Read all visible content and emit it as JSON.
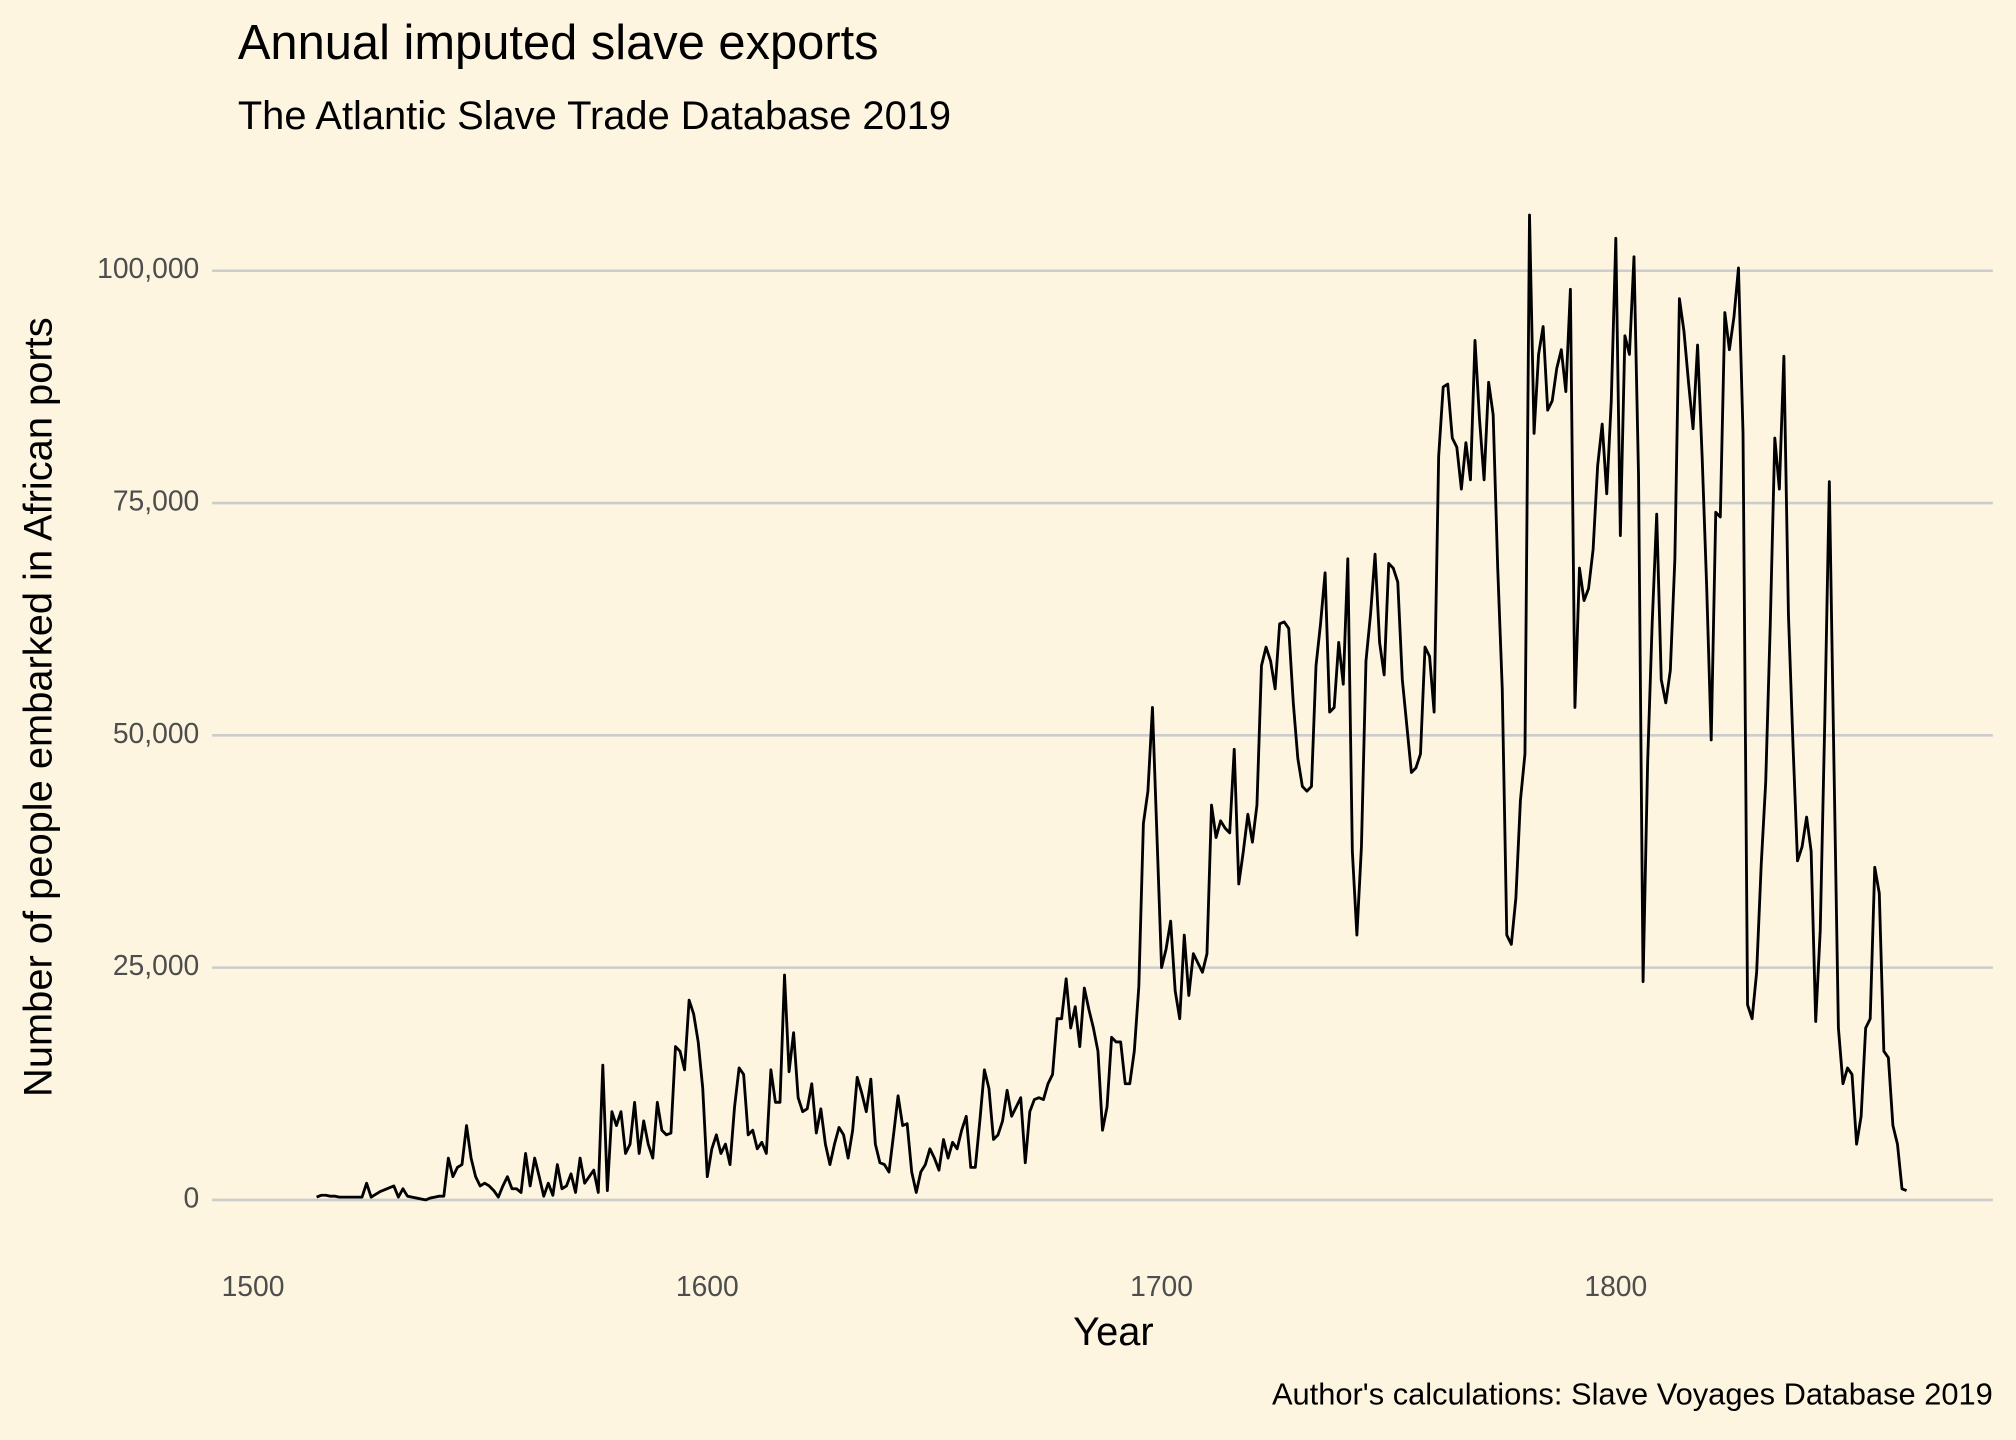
{
  "chart_data": {
    "type": "line",
    "title": "Annual imputed slave exports",
    "subtitle": "The Atlantic Slave Trade Database 2019",
    "x_label": "Year",
    "y_label": "Number of people embarked in African ports",
    "caption": "Author's calculations: Slave Voyages Database 2019",
    "xlim": [
      1491,
      1883
    ],
    "ylim": [
      -3700,
      107000
    ],
    "xticks": [
      1500,
      1600,
      1700,
      1800
    ],
    "yticks": [
      0,
      {
        "value": 25000,
        "label": "25,000"
      },
      {
        "value": 50000,
        "label": "50,000"
      },
      {
        "value": 75000,
        "label": "75,000"
      },
      {
        "value": 100000,
        "label": "100,000"
      }
    ],
    "grid": true,
    "x": [
      1514,
      1515,
      1516,
      1517,
      1518,
      1519,
      1520,
      1521,
      1522,
      1523,
      1524,
      1525,
      1526,
      1527,
      1528,
      1529,
      1530,
      1531,
      1532,
      1533,
      1534,
      1535,
      1536,
      1537,
      1538,
      1539,
      1540,
      1541,
      1542,
      1543,
      1544,
      1545,
      1546,
      1547,
      1548,
      1549,
      1550,
      1551,
      1552,
      1553,
      1554,
      1555,
      1556,
      1557,
      1558,
      1559,
      1560,
      1561,
      1562,
      1563,
      1564,
      1565,
      1566,
      1567,
      1568,
      1569,
      1570,
      1571,
      1572,
      1573,
      1574,
      1575,
      1576,
      1577,
      1578,
      1579,
      1580,
      1581,
      1582,
      1583,
      1584,
      1585,
      1586,
      1587,
      1588,
      1589,
      1590,
      1591,
      1592,
      1593,
      1594,
      1595,
      1596,
      1597,
      1598,
      1599,
      1600,
      1601,
      1602,
      1603,
      1604,
      1605,
      1606,
      1607,
      1608,
      1609,
      1610,
      1611,
      1612,
      1613,
      1614,
      1615,
      1616,
      1617,
      1618,
      1619,
      1620,
      1621,
      1622,
      1623,
      1624,
      1625,
      1626,
      1627,
      1628,
      1629,
      1630,
      1631,
      1632,
      1633,
      1634,
      1635,
      1636,
      1637,
      1638,
      1639,
      1640,
      1641,
      1642,
      1643,
      1644,
      1645,
      1646,
      1647,
      1648,
      1649,
      1650,
      1651,
      1652,
      1653,
      1654,
      1655,
      1656,
      1657,
      1658,
      1659,
      1660,
      1661,
      1662,
      1663,
      1664,
      1665,
      1666,
      1667,
      1668,
      1669,
      1670,
      1671,
      1672,
      1673,
      1674,
      1675,
      1676,
      1677,
      1678,
      1679,
      1680,
      1681,
      1682,
      1683,
      1684,
      1685,
      1686,
      1687,
      1688,
      1689,
      1690,
      1691,
      1692,
      1693,
      1694,
      1695,
      1696,
      1697,
      1698,
      1699,
      1700,
      1701,
      1702,
      1703,
      1704,
      1705,
      1706,
      1707,
      1708,
      1709,
      1710,
      1711,
      1712,
      1713,
      1714,
      1715,
      1716,
      1717,
      1718,
      1719,
      1720,
      1721,
      1722,
      1723,
      1724,
      1725,
      1726,
      1727,
      1728,
      1729,
      1730,
      1731,
      1732,
      1733,
      1734,
      1735,
      1736,
      1737,
      1738,
      1739,
      1740,
      1741,
      1742,
      1743,
      1744,
      1745,
      1746,
      1747,
      1748,
      1749,
      1750,
      1751,
      1752,
      1753,
      1754,
      1755,
      1756,
      1757,
      1758,
      1759,
      1760,
      1761,
      1762,
      1763,
      1764,
      1765,
      1766,
      1767,
      1768,
      1769,
      1770,
      1771,
      1772,
      1773,
      1774,
      1775,
      1776,
      1777,
      1778,
      1779,
      1780,
      1781,
      1782,
      1783,
      1784,
      1785,
      1786,
      1787,
      1788,
      1789,
      1790,
      1791,
      1792,
      1793,
      1794,
      1795,
      1796,
      1797,
      1798,
      1799,
      1800,
      1801,
      1802,
      1803,
      1804,
      1805,
      1806,
      1807,
      1808,
      1809,
      1810,
      1811,
      1812,
      1813,
      1814,
      1815,
      1816,
      1817,
      1818,
      1819,
      1820,
      1821,
      1822,
      1823,
      1824,
      1825,
      1826,
      1827,
      1828,
      1829,
      1830,
      1831,
      1832,
      1833,
      1834,
      1835,
      1836,
      1837,
      1838,
      1839,
      1840,
      1841,
      1842,
      1843,
      1844,
      1845,
      1846,
      1847,
      1848,
      1849,
      1850,
      1851,
      1852,
      1853,
      1854,
      1855,
      1856,
      1857,
      1858,
      1859,
      1860,
      1861,
      1862,
      1863,
      1864
    ],
    "series": [
      {
        "color": "#000000",
        "values": [
          300,
          500,
          500,
          400,
          400,
          300,
          300,
          300,
          300,
          300,
          300,
          1800,
          300,
          600,
          900,
          1100,
          1300,
          1500,
          300,
          1200,
          400,
          300,
          200,
          100,
          0,
          200,
          300,
          400,
          400,
          4500,
          2500,
          3500,
          3800,
          8000,
          4500,
          2500,
          1500,
          1800,
          1500,
          1000,
          300,
          1500,
          2500,
          1200,
          1200,
          800,
          5000,
          1500,
          4500,
          2500,
          400,
          1800,
          500,
          3800,
          1200,
          1500,
          2800,
          800,
          4500,
          1800,
          2500,
          3200,
          800,
          14500,
          1000,
          9500,
          8000,
          9500,
          5000,
          6000,
          10500,
          5000,
          8500,
          6000,
          4500,
          10500,
          7500,
          7000,
          7200,
          16500,
          16000,
          14000,
          21500,
          20000,
          17000,
          12000,
          2500,
          5500,
          7000,
          5000,
          6000,
          3800,
          10000,
          14200,
          13500,
          7000,
          7500,
          5500,
          6200,
          5000,
          14000,
          10500,
          10500,
          24200,
          13800,
          18000,
          11000,
          9500,
          9800,
          12500,
          7200,
          9800,
          6000,
          3800,
          6000,
          7800,
          7000,
          4500,
          7500,
          13200,
          11500,
          9500,
          13000,
          6000,
          4000,
          3800,
          3000,
          7000,
          11200,
          8000,
          8200,
          3000,
          800,
          3000,
          3800,
          5500,
          4500,
          3200,
          6500,
          4500,
          6200,
          5500,
          7500,
          9000,
          3500,
          3500,
          8500,
          14000,
          12000,
          6500,
          7000,
          8500,
          11800,
          9000,
          10000,
          11000,
          4000,
          9500,
          10800,
          11000,
          10800,
          12500,
          13500,
          19500,
          19500,
          23800,
          18500,
          20800,
          16500,
          22800,
          20500,
          18500,
          16000,
          7500,
          10000,
          17500,
          17000,
          17000,
          12500,
          12500,
          16000,
          23000,
          40500,
          44000,
          53000,
          39000,
          25000,
          27000,
          30000,
          22500,
          19500,
          28500,
          22000,
          26500,
          25500,
          24500,
          26500,
          42500,
          39000,
          40800,
          40000,
          39500,
          48500,
          34000,
          37500,
          41500,
          38500,
          42500,
          57500,
          59500,
          58000,
          55000,
          62000,
          62200,
          61500,
          53500,
          47500,
          44500,
          44000,
          44500,
          57500,
          62000,
          67500,
          52500,
          53000,
          60000,
          55500,
          69000,
          37500,
          28500,
          38000,
          58000,
          63000,
          69500,
          60000,
          56500,
          68500,
          68000,
          66500,
          56000,
          51000,
          46000,
          46500,
          48000,
          59500,
          58500,
          52500,
          80000,
          87500,
          87800,
          82000,
          81000,
          76500,
          81500,
          77500,
          92500,
          84000,
          77500,
          88000,
          84500,
          68000,
          55000,
          28500,
          27500,
          32500,
          43000,
          48000,
          106000,
          82500,
          91000,
          94000,
          85000,
          86000,
          89500,
          91500,
          87000,
          98000,
          53000,
          68000,
          64500,
          65800,
          70000,
          79000,
          83500,
          76000,
          86000,
          103500,
          71500,
          93000,
          91000,
          101500,
          78000,
          23500,
          47000,
          62000,
          73800,
          56000,
          53500,
          57000,
          69000,
          97000,
          93500,
          88000,
          83000,
          92000,
          80000,
          66000,
          49500,
          74000,
          73500,
          95500,
          91500,
          95000,
          100300,
          82500,
          21000,
          19500,
          24500,
          36000,
          45000,
          62000,
          82000,
          76500,
          90800,
          63000,
          49000,
          36500,
          38000,
          41200,
          37500,
          19200,
          29000,
          51500,
          77300,
          47500,
          18500,
          12500,
          14200,
          13500,
          6000,
          9000,
          18500,
          19500,
          35800,
          33000,
          16000,
          15300,
          8000,
          6000,
          1200,
          1000
        ]
      }
    ]
  }
}
